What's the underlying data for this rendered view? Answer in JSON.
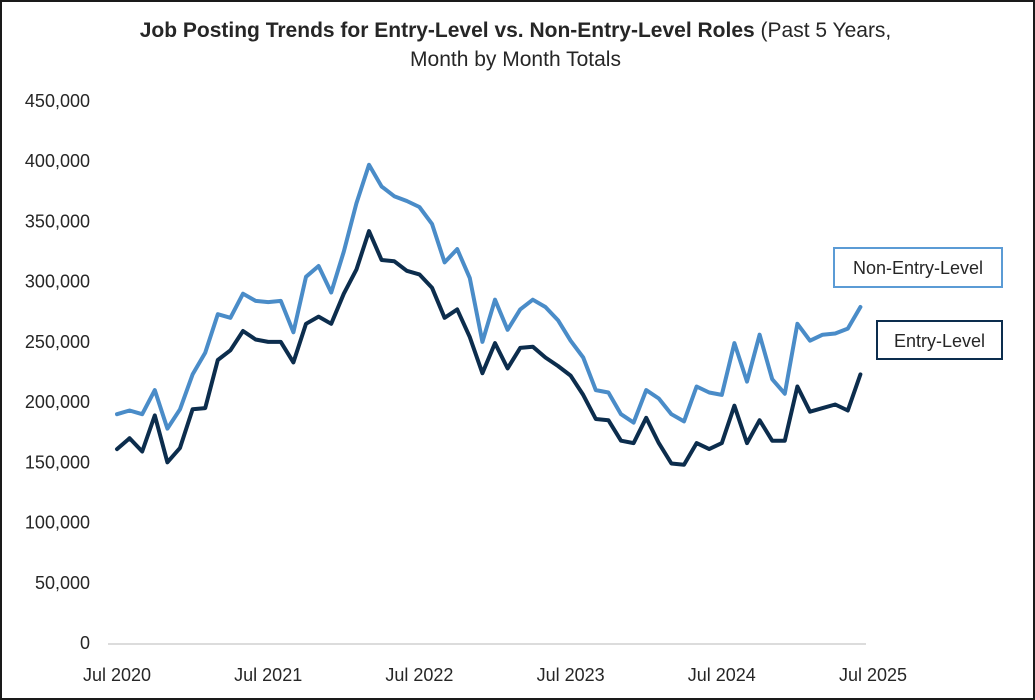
{
  "chart_data": {
    "type": "line",
    "title_bold": "Job Posting Trends for Entry-Level vs. Non-Entry-Level Roles",
    "title_rest": " (Past 5 Years,",
    "title_line2": "Month by Month Totals",
    "xlabel": "",
    "ylabel": "",
    "ylim": [
      0,
      450000
    ],
    "yticks": [
      0,
      50000,
      100000,
      150000,
      200000,
      250000,
      300000,
      350000,
      400000,
      450000
    ],
    "ytick_labels": [
      "0",
      "50,000",
      "100,000",
      "150,000",
      "200,000",
      "250,000",
      "300,000",
      "350,000",
      "400,000",
      "450,000"
    ],
    "xtick_labels": [
      "Jul 2020",
      "Jul 2021",
      "Jul 2022",
      "Jul 2023",
      "Jul 2024",
      "Jul 2025"
    ],
    "xtick_indices": [
      0,
      12,
      24,
      36,
      48,
      60
    ],
    "grid": false,
    "legend": "right, inline labels",
    "series": [
      {
        "name": "Non-Entry-Level",
        "color": "#4a8cc8",
        "values": [
          190000,
          193000,
          190000,
          210000,
          178000,
          194000,
          223000,
          241000,
          273000,
          270000,
          290000,
          284000,
          283000,
          284000,
          258000,
          304000,
          313000,
          291000,
          325000,
          365000,
          397000,
          379000,
          371000,
          367000,
          362000,
          348000,
          316000,
          327000,
          303000,
          250000,
          285000,
          260000,
          277000,
          285000,
          279000,
          268000,
          251000,
          237000,
          210000,
          208000,
          190000,
          183000,
          210000,
          203000,
          190000,
          184000,
          213000,
          208000,
          206000,
          249000,
          217000,
          256000,
          219000,
          207000,
          265000,
          251000,
          256000,
          257000,
          261000,
          279000
        ]
      },
      {
        "name": "Entry-Level",
        "color": "#0c2d4d",
        "values": [
          161000,
          170000,
          159000,
          189000,
          150000,
          162000,
          194000,
          195000,
          235000,
          243000,
          259000,
          252000,
          250000,
          250000,
          233000,
          265000,
          271000,
          265000,
          290000,
          310000,
          342000,
          318000,
          317000,
          309000,
          306000,
          295000,
          270000,
          277000,
          254000,
          224000,
          249000,
          228000,
          245000,
          246000,
          237000,
          230000,
          222000,
          206000,
          186000,
          185000,
          168000,
          166000,
          187000,
          166000,
          149000,
          148000,
          166000,
          161000,
          166000,
          197000,
          166000,
          185000,
          168000,
          168000,
          213000,
          192000,
          195000,
          198000,
          193000,
          223000
        ]
      }
    ]
  }
}
